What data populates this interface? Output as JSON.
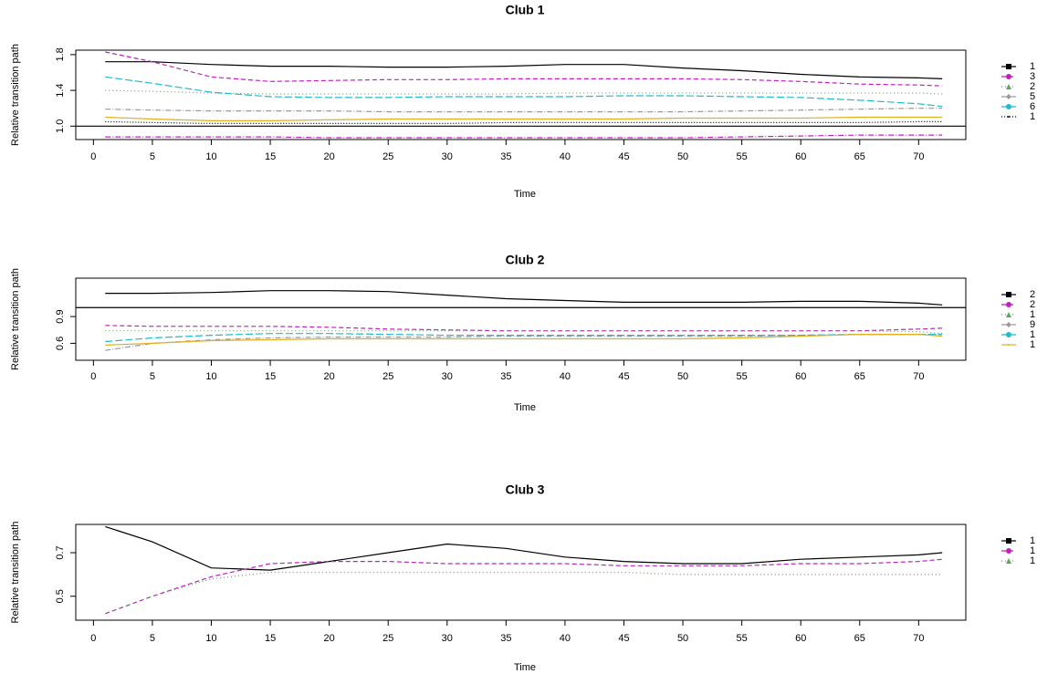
{
  "chart_data": [
    {
      "type": "line",
      "title": "Club 1",
      "x_label": "Time",
      "y_label": "Relative transition path",
      "x": [
        1,
        5,
        10,
        15,
        20,
        25,
        30,
        35,
        40,
        45,
        50,
        55,
        60,
        65,
        70,
        72
      ],
      "xlim": [
        -1.5,
        74
      ],
      "xticks": [
        0,
        5,
        10,
        15,
        20,
        25,
        30,
        35,
        40,
        45,
        50,
        55,
        60,
        65,
        70
      ],
      "ylim": [
        0.85,
        1.85
      ],
      "yticks": [
        {
          "value": 1,
          "label": "1.0"
        },
        1.4,
        1.8
      ],
      "reference_line": 1,
      "series": [
        {
          "name": "1",
          "color": "#000000",
          "dash": "none",
          "marker": "square",
          "values": [
            1.72,
            1.72,
            1.69,
            1.67,
            1.67,
            1.66,
            1.66,
            1.67,
            1.69,
            1.69,
            1.65,
            1.62,
            1.58,
            1.55,
            1.54,
            1.53
          ]
        },
        {
          "name": "3",
          "color": "#c020c0",
          "dash": "5,3",
          "marker": "circle",
          "values": [
            1.83,
            1.72,
            1.55,
            1.5,
            1.51,
            1.52,
            1.52,
            1.53,
            1.53,
            1.53,
            1.53,
            1.52,
            1.5,
            1.47,
            1.46,
            1.45
          ]
        },
        {
          "name": "2",
          "color": "#55aa55",
          "dash": "1,3",
          "marker": "triangle",
          "values": [
            1.4,
            1.39,
            1.37,
            1.36,
            1.36,
            1.36,
            1.36,
            1.36,
            1.37,
            1.37,
            1.37,
            1.37,
            1.37,
            1.37,
            1.37,
            1.36
          ]
        },
        {
          "name": "5",
          "color": "#999999",
          "dash": "6,2,1,2",
          "marker": "diamond",
          "values": [
            1.19,
            1.18,
            1.17,
            1.17,
            1.17,
            1.16,
            1.16,
            1.16,
            1.16,
            1.16,
            1.16,
            1.17,
            1.18,
            1.19,
            1.2,
            1.2
          ]
        },
        {
          "name": "6",
          "color": "#22bbcc",
          "dash": "8,3",
          "marker": "circle",
          "values": [
            1.55,
            1.48,
            1.38,
            1.33,
            1.32,
            1.32,
            1.33,
            1.33,
            1.33,
            1.34,
            1.34,
            1.33,
            1.32,
            1.29,
            1.25,
            1.22
          ]
        },
        {
          "name": "1",
          "color": "#000000",
          "dash": "1,2",
          "marker": "dot",
          "values": [
            1.05,
            1.04,
            1.03,
            1.03,
            1.03,
            1.03,
            1.03,
            1.04,
            1.04,
            1.04,
            1.04,
            1.04,
            1.04,
            1.04,
            1.05,
            1.05
          ]
        },
        {
          "color": "#e0b020",
          "dash": "none",
          "values": [
            1.1,
            1.08,
            1.06,
            1.06,
            1.07,
            1.08,
            1.08,
            1.08,
            1.08,
            1.08,
            1.09,
            1.09,
            1.09,
            1.1,
            1.1,
            1.1
          ]
        },
        {
          "color": "#c020c0",
          "dash": "6,2,1,2",
          "values": [
            0.88,
            0.88,
            0.88,
            0.88,
            0.87,
            0.87,
            0.87,
            0.87,
            0.87,
            0.87,
            0.87,
            0.88,
            0.89,
            0.9,
            0.9,
            0.9
          ]
        }
      ]
    },
    {
      "type": "line",
      "title": "Club 2",
      "x_label": "Time",
      "y_label": "Relative transition path",
      "x": [
        1,
        5,
        10,
        15,
        20,
        25,
        30,
        35,
        40,
        45,
        50,
        55,
        60,
        65,
        70,
        72
      ],
      "xlim": [
        -1.5,
        74
      ],
      "xticks": [
        0,
        5,
        10,
        15,
        20,
        25,
        30,
        35,
        40,
        45,
        50,
        55,
        60,
        65,
        70
      ],
      "ylim": [
        0.41,
        1.33
      ],
      "yticks": [
        0.6,
        0.9
      ],
      "reference_line": 1,
      "series": [
        {
          "name": "2",
          "color": "#000000",
          "dash": "none",
          "marker": "square",
          "values": [
            1.16,
            1.16,
            1.17,
            1.19,
            1.19,
            1.18,
            1.14,
            1.1,
            1.08,
            1.06,
            1.06,
            1.06,
            1.07,
            1.07,
            1.05,
            1.03
          ]
        },
        {
          "name": "2",
          "color": "#c020c0",
          "dash": "5,3",
          "marker": "circle",
          "values": [
            0.8,
            0.79,
            0.79,
            0.79,
            0.78,
            0.76,
            0.75,
            0.74,
            0.74,
            0.74,
            0.74,
            0.74,
            0.74,
            0.74,
            0.76,
            0.77
          ]
        },
        {
          "name": "1",
          "color": "#55aa55",
          "dash": "1,3",
          "marker": "triangle",
          "values": [
            0.74,
            0.74,
            0.74,
            0.74,
            0.74,
            0.74,
            0.74,
            0.74,
            0.74,
            0.74,
            0.74,
            0.74,
            0.74,
            0.74,
            0.73,
            0.71
          ]
        },
        {
          "name": "9",
          "color": "#999999",
          "dash": "6,2,1,2",
          "marker": "diamond",
          "values": [
            0.52,
            0.6,
            0.64,
            0.66,
            0.67,
            0.67,
            0.67,
            0.68,
            0.68,
            0.68,
            0.68,
            0.68,
            0.69,
            0.7,
            0.7,
            0.7
          ]
        },
        {
          "name": "1",
          "color": "#22bbcc",
          "dash": "8,3",
          "marker": "circle",
          "values": [
            0.62,
            0.66,
            0.69,
            0.71,
            0.71,
            0.7,
            0.69,
            0.69,
            0.69,
            0.69,
            0.69,
            0.69,
            0.69,
            0.7,
            0.7,
            0.7
          ]
        },
        {
          "name": "1",
          "color": "#e0b020",
          "dash": "none",
          "marker": "dot",
          "values": [
            0.58,
            0.6,
            0.63,
            0.64,
            0.65,
            0.65,
            0.65,
            0.65,
            0.65,
            0.65,
            0.65,
            0.66,
            0.68,
            0.7,
            0.7,
            0.68
          ]
        }
      ]
    },
    {
      "type": "line",
      "title": "Club 3",
      "x_label": "Time",
      "y_label": "Relative transition path",
      "x": [
        1,
        5,
        10,
        15,
        20,
        25,
        30,
        35,
        40,
        45,
        50,
        55,
        60,
        65,
        70,
        72
      ],
      "xlim": [
        -1.5,
        74
      ],
      "xticks": [
        0,
        5,
        10,
        15,
        20,
        25,
        30,
        35,
        40,
        45,
        50,
        55,
        60,
        65,
        70
      ],
      "ylim": [
        0.39,
        0.83
      ],
      "yticks": [
        0.5,
        0.7
      ],
      "series": [
        {
          "name": "1",
          "color": "#000000",
          "dash": "none",
          "marker": "square",
          "values": [
            0.82,
            0.75,
            0.63,
            0.62,
            0.66,
            0.7,
            0.74,
            0.72,
            0.68,
            0.66,
            0.65,
            0.65,
            0.67,
            0.68,
            0.69,
            0.7
          ]
        },
        {
          "name": "1",
          "color": "#c020c0",
          "dash": "5,3",
          "marker": "circle",
          "values": [
            0.42,
            0.5,
            0.59,
            0.65,
            0.66,
            0.66,
            0.65,
            0.65,
            0.65,
            0.64,
            0.64,
            0.64,
            0.65,
            0.65,
            0.66,
            0.67
          ]
        },
        {
          "name": "1",
          "color": "#55aa55",
          "dash": "1,3",
          "marker": "triangle",
          "values": [
            0.42,
            0.5,
            0.58,
            0.61,
            0.61,
            0.61,
            0.61,
            0.61,
            0.61,
            0.61,
            0.6,
            0.6,
            0.6,
            0.6,
            0.6,
            0.6
          ]
        }
      ]
    }
  ]
}
